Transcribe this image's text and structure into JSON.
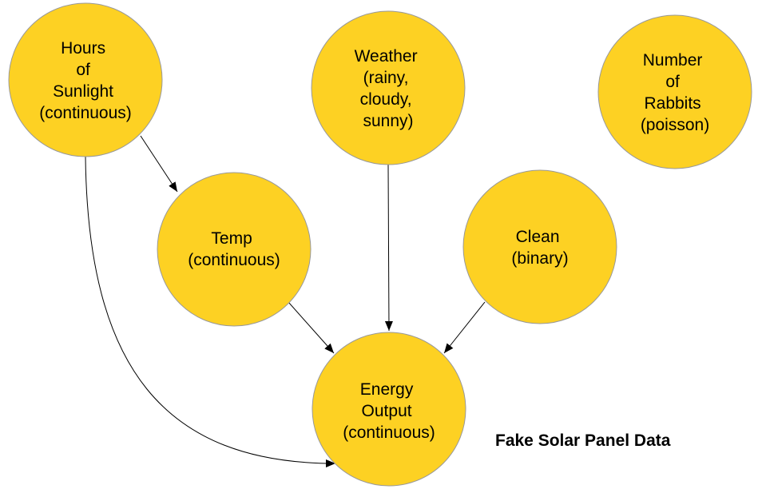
{
  "diagram": {
    "title": "Fake Solar Panel Data",
    "node_fill": "#FDD123",
    "node_stroke": "#999999",
    "edge_color": "#000000",
    "nodes": {
      "sunlight": {
        "lines": [
          "Hours",
          "of",
          "Sunlight",
          "(continuous)"
        ]
      },
      "weather": {
        "lines": [
          "Weather",
          "(rainy,",
          "cloudy,",
          "sunny)"
        ]
      },
      "rabbits": {
        "lines": [
          "Number",
          "of",
          "Rabbits",
          "(poisson)"
        ]
      },
      "temp": {
        "lines": [
          "Temp",
          "(continuous)"
        ]
      },
      "clean": {
        "lines": [
          "Clean",
          "(binary)"
        ]
      },
      "energy": {
        "lines": [
          "Energy",
          "Output",
          "(continuous)"
        ]
      }
    },
    "edges": [
      {
        "from": "sunlight",
        "to": "temp"
      },
      {
        "from": "sunlight",
        "to": "energy"
      },
      {
        "from": "temp",
        "to": "energy"
      },
      {
        "from": "weather",
        "to": "energy"
      },
      {
        "from": "clean",
        "to": "energy"
      }
    ]
  }
}
